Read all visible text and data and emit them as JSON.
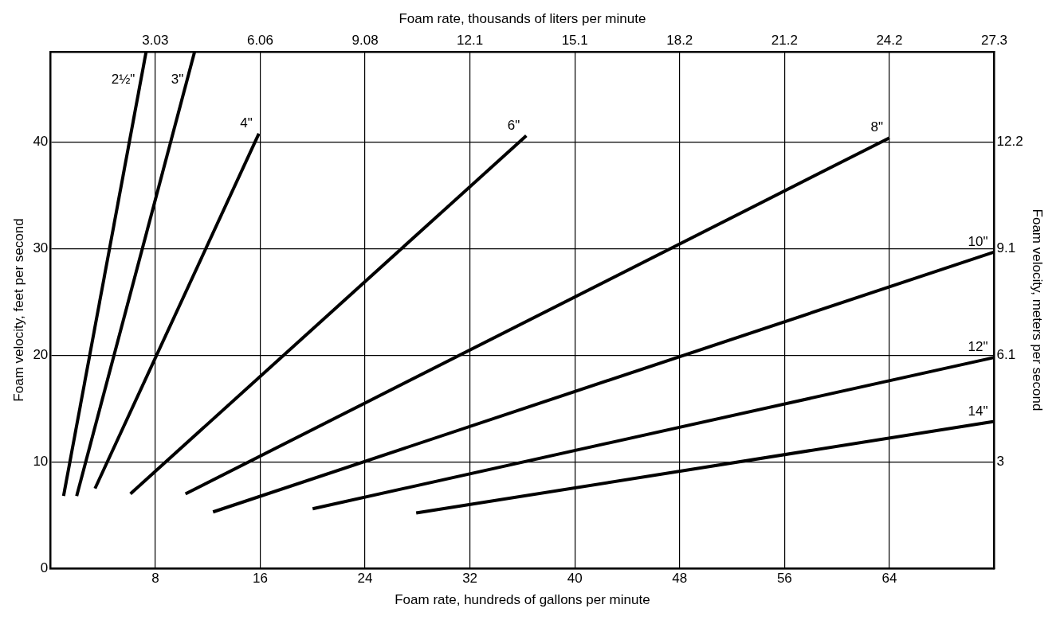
{
  "chart_data": {
    "type": "line",
    "xlabel": "Foam rate, hundreds of gallons per minute",
    "x2label": "Foam rate, thousands of liters per minute",
    "ylabel": "Foam velocity, feet per second",
    "y2label": "Foam velocity, meters per second",
    "xlim": [
      0,
      72
    ],
    "xticks": [
      8,
      16,
      24,
      32,
      40,
      48,
      56,
      64
    ],
    "x2lim": [
      0,
      27.255
    ],
    "x2ticks": [
      {
        "value": 3.028,
        "label": "3.03"
      },
      {
        "value": 6.057,
        "label": "6.06"
      },
      {
        "value": 9.085,
        "label": "9.08"
      },
      {
        "value": 12.113,
        "label": "12.1"
      },
      {
        "value": 15.142,
        "label": "15.1"
      },
      {
        "value": 18.17,
        "label": "18.2"
      },
      {
        "value": 21.198,
        "label": "21.2"
      },
      {
        "value": 24.227,
        "label": "24.2"
      },
      {
        "value": 27.255,
        "label": "27.3"
      }
    ],
    "ylim": [
      0,
      48.5
    ],
    "yticks": [
      0,
      10,
      20,
      30,
      40
    ],
    "y2lim": [
      0,
      14.783
    ],
    "y2ticks": [
      {
        "value": 3.048,
        "label": "3"
      },
      {
        "value": 6.096,
        "label": "6.1"
      },
      {
        "value": 9.144,
        "label": "9.1"
      },
      {
        "value": 12.192,
        "label": "12.2"
      }
    ],
    "grid": true,
    "legend": false,
    "marker": "none",
    "line_style": "solid",
    "series": [
      {
        "name": "2½\"",
        "color": "#000000",
        "x": [
          1.0,
          7.3
        ],
        "values": [
          6.8,
          48.5
        ]
      },
      {
        "name": "3\"",
        "color": "#000000",
        "x": [
          2.0,
          11.0
        ],
        "values": [
          6.8,
          48.5
        ]
      },
      {
        "name": "4\"",
        "color": "#000000",
        "x": [
          3.4,
          15.9
        ],
        "values": [
          7.5,
          40.8
        ]
      },
      {
        "name": "6\"",
        "color": "#000000",
        "x": [
          6.1,
          36.3
        ],
        "values": [
          7.0,
          40.6
        ]
      },
      {
        "name": "8\"",
        "color": "#000000",
        "x": [
          10.3,
          64.0
        ],
        "values": [
          7.0,
          40.4
        ]
      },
      {
        "name": "10\"",
        "color": "#000000",
        "x": [
          12.4,
          72.0
        ],
        "values": [
          5.3,
          29.7
        ]
      },
      {
        "name": "12\"",
        "color": "#000000",
        "x": [
          20.0,
          72.0
        ],
        "values": [
          5.6,
          19.8
        ]
      },
      {
        "name": "14\"",
        "color": "#000000",
        "x": [
          27.9,
          72.0
        ],
        "values": [
          5.2,
          13.8
        ]
      }
    ]
  }
}
